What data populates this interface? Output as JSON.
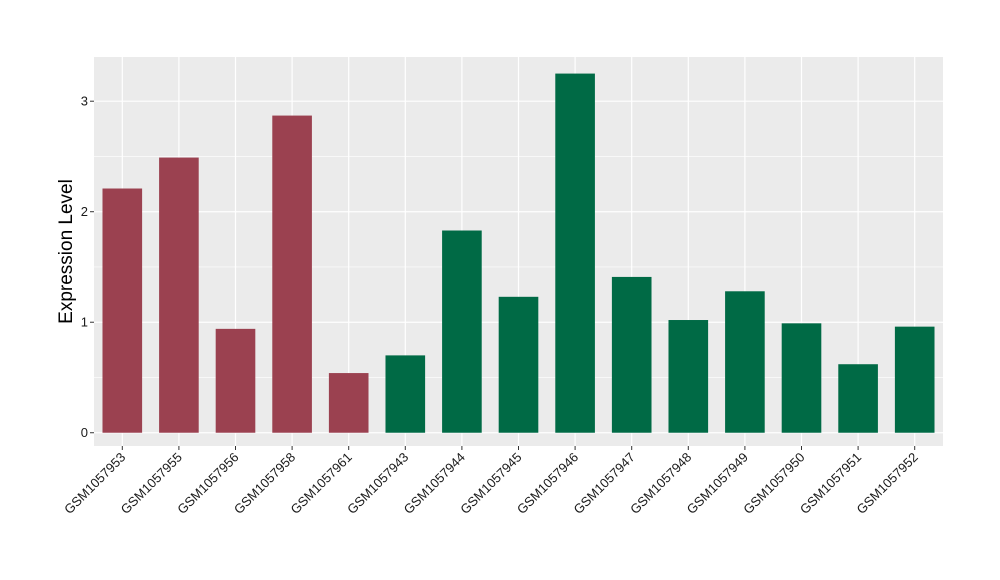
{
  "chart_data": {
    "type": "bar",
    "title": "",
    "xlabel": "",
    "ylabel": "Expression Level",
    "ylim": [
      -0.12,
      3.4
    ],
    "yticks": [
      0,
      1,
      2,
      3
    ],
    "ytick_labels": [
      "0",
      "1",
      "2",
      "3"
    ],
    "grid": true,
    "legend": "none",
    "categories": [
      "GSM1057953",
      "GSM1057955",
      "GSM1057956",
      "GSM1057958",
      "GSM1057961",
      "GSM1057943",
      "GSM1057944",
      "GSM1057945",
      "GSM1057946",
      "GSM1057947",
      "GSM1057948",
      "GSM1057949",
      "GSM1057950",
      "GSM1057951",
      "GSM1057952"
    ],
    "values": [
      2.21,
      2.49,
      0.94,
      2.87,
      0.54,
      0.7,
      1.83,
      1.23,
      3.25,
      1.41,
      1.02,
      1.28,
      0.99,
      0.62,
      0.96
    ],
    "groups": [
      0,
      0,
      0,
      0,
      0,
      1,
      1,
      1,
      1,
      1,
      1,
      1,
      1,
      1,
      1
    ],
    "group_colors": [
      "#9b4150",
      "#006a45"
    ],
    "panel_color": "#ebebeb",
    "grid_color": "#ffffff"
  }
}
